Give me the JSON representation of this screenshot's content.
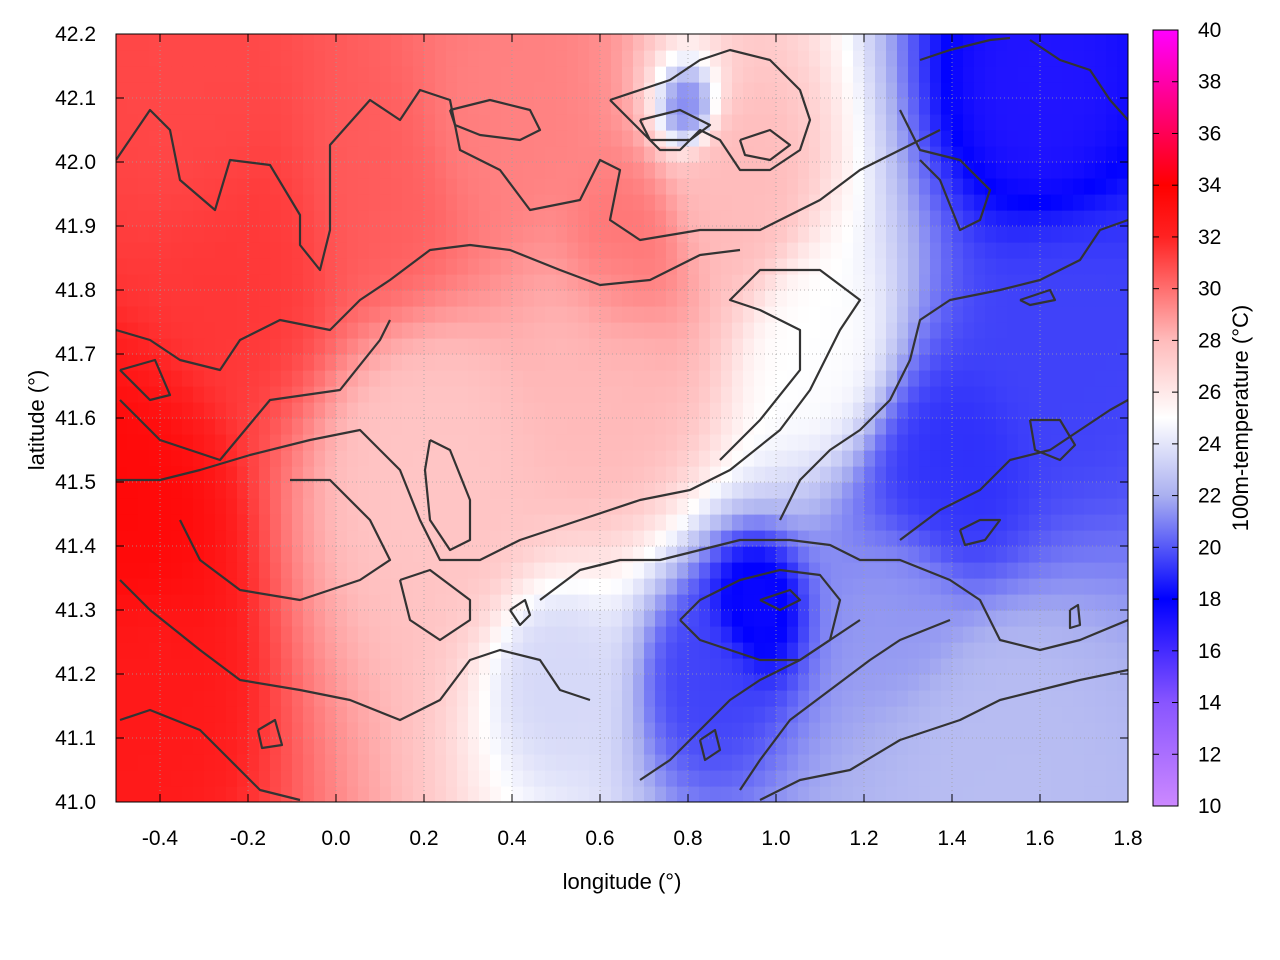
{
  "chart_data": {
    "type": "heatmap",
    "title": "",
    "xlabel": "longitude (°)",
    "ylabel": "latitude (°)",
    "colorbar_label": "100m-temperature (°C)",
    "xlim": [
      -0.5,
      1.8
    ],
    "ylim": [
      41.0,
      42.2
    ],
    "x_ticks": [
      "-0.4",
      "-0.2",
      "0.0",
      "0.2",
      "0.4",
      "0.6",
      "0.8",
      "1.0",
      "1.2",
      "1.4",
      "1.6",
      "1.8"
    ],
    "x_tick_values": [
      -0.4,
      -0.2,
      0.0,
      0.2,
      0.4,
      0.6,
      0.8,
      1.0,
      1.2,
      1.4,
      1.6,
      1.8
    ],
    "y_ticks": [
      "41.0",
      "41.1",
      "41.2",
      "41.3",
      "41.4",
      "41.5",
      "41.6",
      "41.7",
      "41.8",
      "41.9",
      "42.0",
      "42.1",
      "42.2"
    ],
    "y_tick_values": [
      41.0,
      41.1,
      41.2,
      41.3,
      41.4,
      41.5,
      41.6,
      41.7,
      41.8,
      41.9,
      42.0,
      42.1,
      42.2
    ],
    "colorbar_range": [
      10,
      40
    ],
    "colorbar_ticks": [
      "10",
      "12",
      "14",
      "16",
      "18",
      "20",
      "22",
      "24",
      "26",
      "28",
      "30",
      "32",
      "34",
      "36",
      "38",
      "40"
    ],
    "colorbar_tick_values": [
      10,
      12,
      14,
      16,
      18,
      20,
      22,
      24,
      26,
      28,
      30,
      32,
      34,
      36,
      38,
      40
    ],
    "colormap": [
      {
        "value": 10,
        "color": "#cc88ff"
      },
      {
        "value": 14,
        "color": "#8855ff"
      },
      {
        "value": 18,
        "color": "#0000ff"
      },
      {
        "value": 22,
        "color": "#aab0f0"
      },
      {
        "value": 25,
        "color": "#ffffff"
      },
      {
        "value": 28,
        "color": "#ffbbbb"
      },
      {
        "value": 32,
        "color": "#ff2222"
      },
      {
        "value": 34,
        "color": "#ff0000"
      },
      {
        "value": 40,
        "color": "#ff00ff"
      }
    ],
    "grid": true,
    "temperature_hotspots": [
      {
        "lon": -0.48,
        "lat": 41.45,
        "temp": 33.5,
        "spread": 0.25
      },
      {
        "lon": -0.45,
        "lat": 41.2,
        "temp": 32.5,
        "spread": 0.2
      },
      {
        "lon": -0.2,
        "lat": 41.85,
        "temp": 31.5,
        "spread": 0.3
      },
      {
        "lon": 0.1,
        "lat": 41.95,
        "temp": 30.5,
        "spread": 0.3
      },
      {
        "lon": 0.35,
        "lat": 42.05,
        "temp": 29.5,
        "spread": 0.25
      },
      {
        "lon": -0.3,
        "lat": 42.05,
        "temp": 31.0,
        "spread": 0.25
      },
      {
        "lon": 0.2,
        "lat": 41.55,
        "temp": 27.5,
        "spread": 0.3
      },
      {
        "lon": 0.6,
        "lat": 41.7,
        "temp": 28.0,
        "spread": 0.25
      },
      {
        "lon": 0.65,
        "lat": 41.85,
        "temp": 30.0,
        "spread": 0.2
      },
      {
        "lon": 0.9,
        "lat": 41.95,
        "temp": 28.0,
        "spread": 0.2
      },
      {
        "lon": 1.1,
        "lat": 41.7,
        "temp": 25.0,
        "spread": 0.2
      },
      {
        "lon": 0.5,
        "lat": 41.2,
        "temp": 23.5,
        "spread": 0.15
      },
      {
        "lon": 0.95,
        "lat": 41.3,
        "temp": 17.5,
        "spread": 0.12
      },
      {
        "lon": 0.85,
        "lat": 41.2,
        "temp": 19.5,
        "spread": 0.15
      },
      {
        "lon": 1.4,
        "lat": 41.5,
        "temp": 19.0,
        "spread": 0.25
      },
      {
        "lon": 1.65,
        "lat": 41.7,
        "temp": 19.5,
        "spread": 0.25
      },
      {
        "lon": 1.6,
        "lat": 42.1,
        "temp": 17.0,
        "spread": 0.2
      },
      {
        "lon": 0.8,
        "lat": 42.08,
        "temp": 20.5,
        "spread": 0.08
      },
      {
        "lon": 1.5,
        "lat": 41.1,
        "temp": 22.5,
        "spread": 0.3
      },
      {
        "lon": 1.3,
        "lat": 41.3,
        "temp": 21.5,
        "spread": 0.2
      }
    ]
  }
}
